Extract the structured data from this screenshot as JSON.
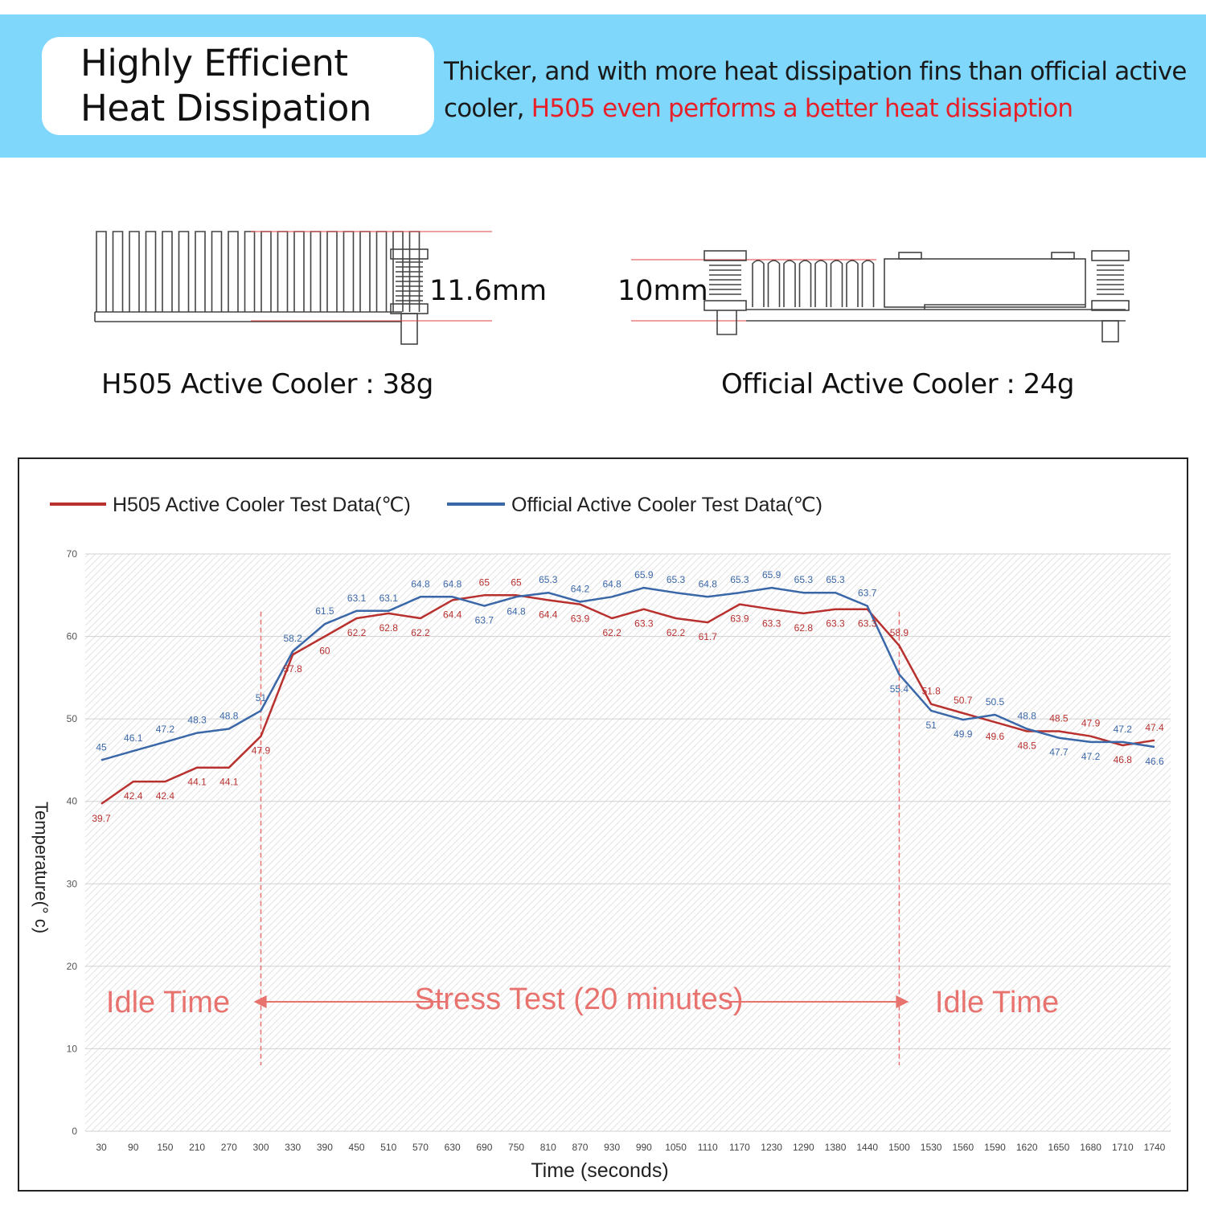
{
  "header": {
    "title_line1": "Highly Efficient",
    "title_line2": "Heat Dissipation",
    "desc_plain": "Thicker, and with more heat dissipation fins than official active cooler,",
    "desc_highlight": "H505 even performs a better heat dissiaption",
    "highlight_color": "#e8202a",
    "banner_color": "#7fd8fb"
  },
  "coolers": {
    "h505": {
      "thickness": "11.6mm",
      "caption": "H505 Active Cooler : 38g"
    },
    "official": {
      "thickness": "10mm",
      "caption": "Official Active Cooler : 24g"
    }
  },
  "chart_data": {
    "type": "line",
    "legend": [
      "H505 Active Cooler Test Data(℃)",
      "Official Active Cooler Test Data(℃)"
    ],
    "legend_position": "top-left",
    "xlabel": "Time (seconds)",
    "ylabel": "Temperature(° c)",
    "ylim": [
      0,
      70
    ],
    "yticks": [
      0,
      10,
      20,
      30,
      40,
      50,
      60,
      70
    ],
    "grid": true,
    "x": [
      "30",
      "90",
      "150",
      "210",
      "270",
      "300",
      "330",
      "390",
      "450",
      "510",
      "570",
      "630",
      "690",
      "750",
      "810",
      "870",
      "930",
      "990",
      "1050",
      "1110",
      "1170",
      "1230",
      "1290",
      "1380",
      "1440",
      "1500",
      "1530",
      "1560",
      "1590",
      "1620",
      "1650",
      "1680",
      "1710",
      "1740"
    ],
    "series": [
      {
        "name": "H505 Active Cooler Test Data(℃)",
        "color": "#b8312f",
        "values": [
          39.7,
          42.4,
          42.4,
          44.1,
          44.1,
          47.9,
          57.8,
          60,
          62.2,
          62.8,
          62.2,
          64.4,
          65,
          65,
          64.4,
          63.9,
          62.2,
          63.3,
          62.2,
          61.7,
          63.9,
          63.3,
          62.8,
          63.3,
          63.3,
          58.9,
          51.8,
          50.7,
          49.6,
          48.5,
          48.5,
          47.9,
          46.8,
          47.4
        ]
      },
      {
        "name": "Official Active Cooler Test Data(℃)",
        "color": "#3a67a8",
        "values": [
          45,
          46.1,
          47.2,
          48.3,
          48.8,
          51,
          58.2,
          61.5,
          63.1,
          63.1,
          64.8,
          64.8,
          63.7,
          64.8,
          65.3,
          64.2,
          64.8,
          65.9,
          65.3,
          64.8,
          65.3,
          65.9,
          65.3,
          65.3,
          63.7,
          55.4,
          51,
          49.9,
          50.5,
          48.8,
          47.7,
          47.2,
          47.2,
          46.6
        ]
      }
    ],
    "annotations": [
      "Idle Time",
      "Stress Test (20 minutes)",
      "Idle Time"
    ],
    "annotation_color": "#e8726e"
  }
}
